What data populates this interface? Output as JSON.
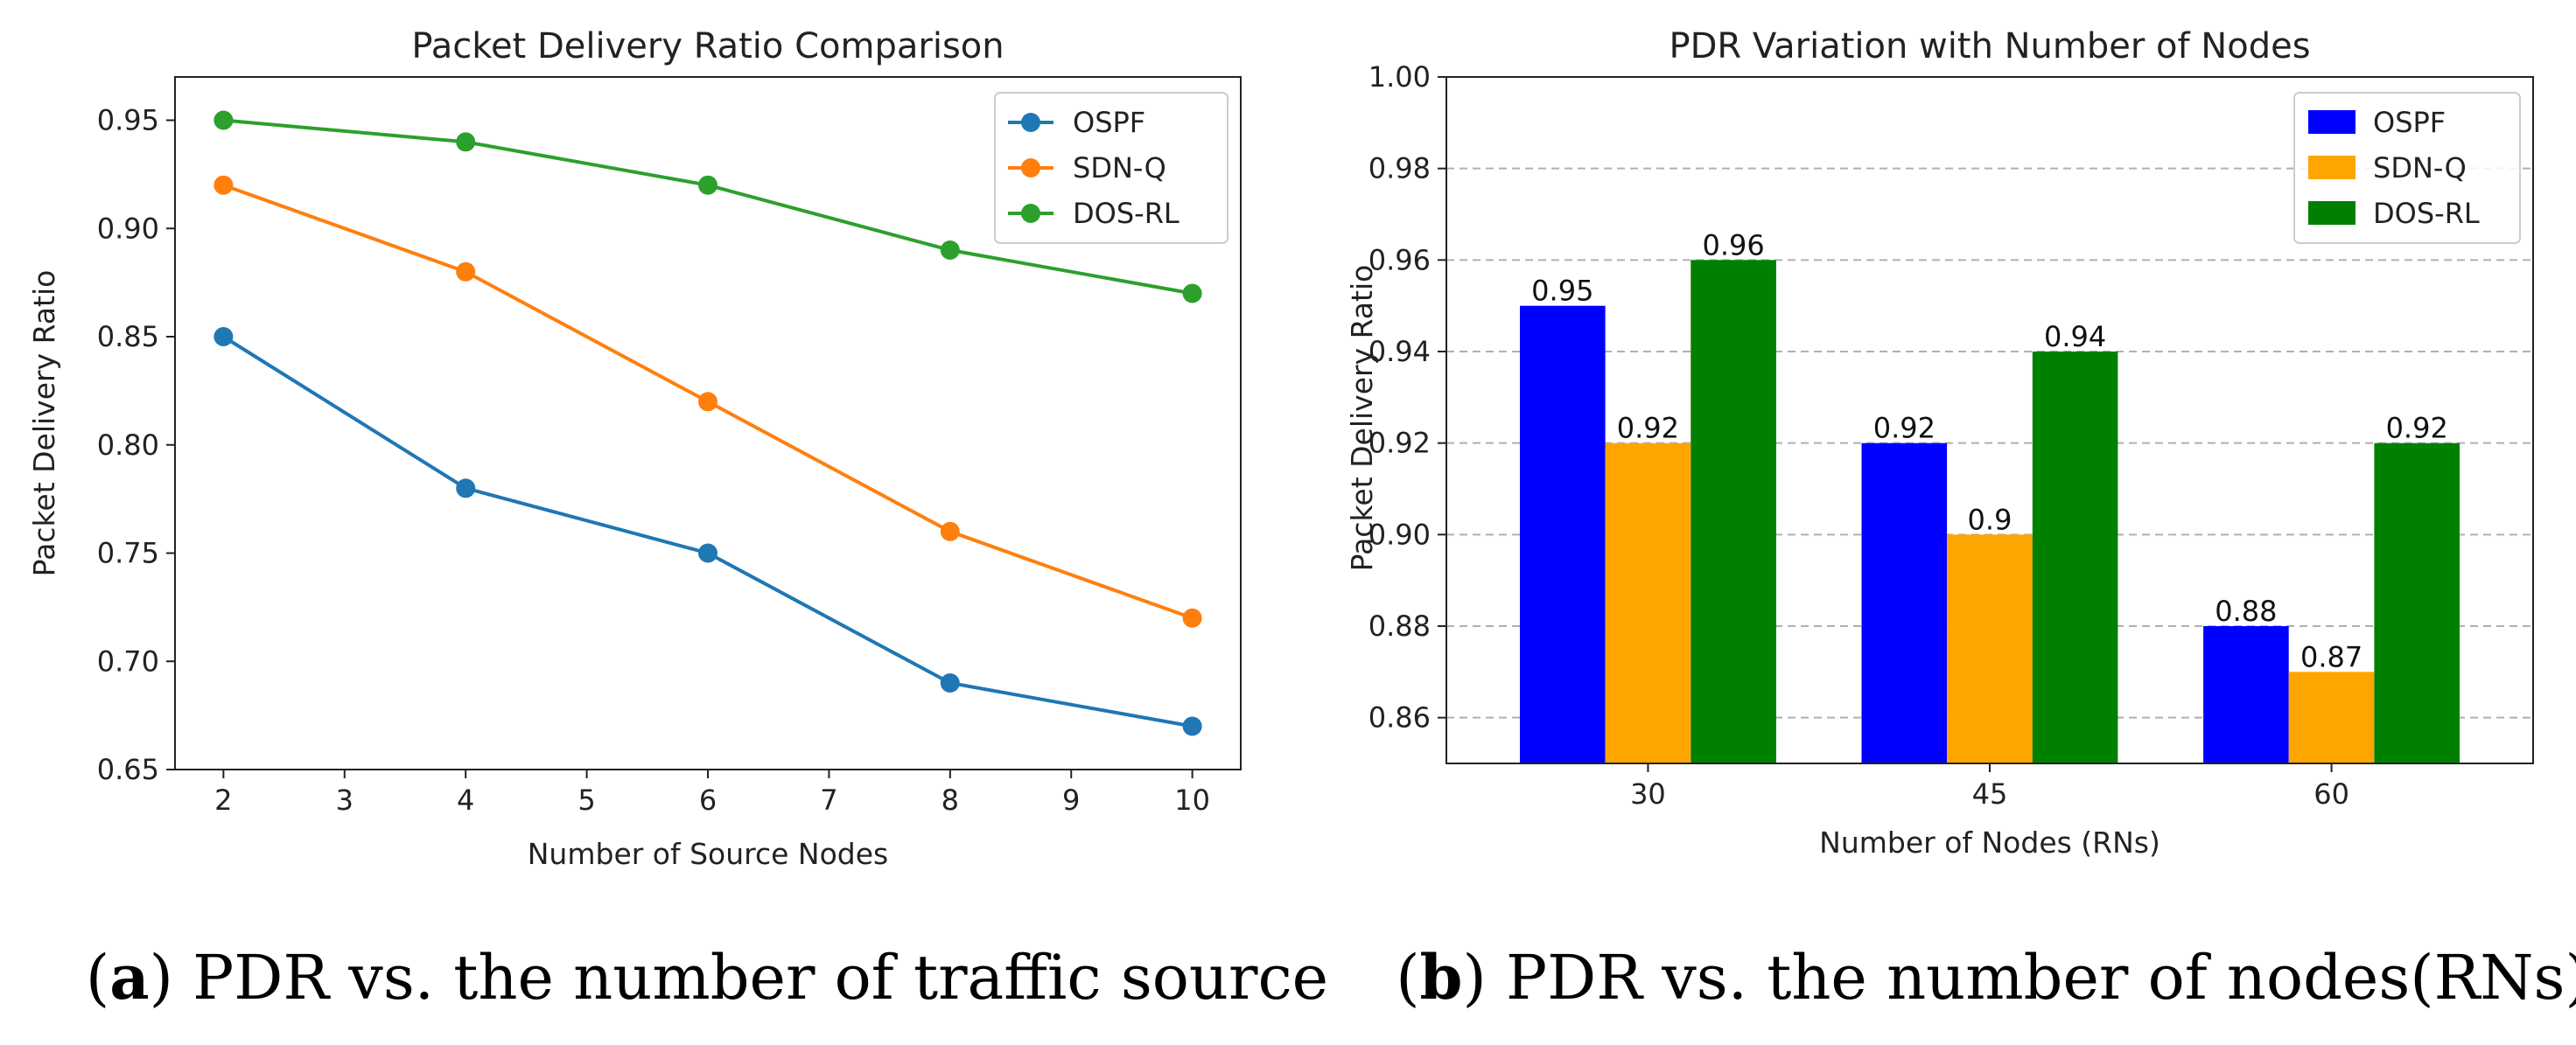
{
  "chart_data": [
    {
      "type": "line",
      "title": "Packet Delivery Ratio Comparison",
      "xlabel": "Number of Source Nodes",
      "ylabel": "Packet Delivery Ratio",
      "x": [
        2,
        4,
        6,
        8,
        10
      ],
      "xticks": [
        "2",
        "3",
        "4",
        "5",
        "6",
        "7",
        "8",
        "9",
        "10"
      ],
      "xlim": [
        1.6,
        10.4
      ],
      "yticks": [
        "0.65",
        "0.70",
        "0.75",
        "0.80",
        "0.85",
        "0.90",
        "0.95"
      ],
      "ylim": [
        0.65,
        0.97
      ],
      "grid": false,
      "legend": "top-right",
      "series": [
        {
          "name": "OSPF",
          "color": "#1f77b4",
          "values": [
            0.85,
            0.78,
            0.75,
            0.69,
            0.67
          ]
        },
        {
          "name": "SDN-Q",
          "color": "#ff7f0e",
          "values": [
            0.92,
            0.88,
            0.82,
            0.76,
            0.72
          ]
        },
        {
          "name": "DOS-RL",
          "color": "#2ca02c",
          "values": [
            0.95,
            0.94,
            0.92,
            0.89,
            0.87
          ]
        }
      ]
    },
    {
      "type": "bar",
      "title": "PDR Variation with Number of Nodes",
      "xlabel": "Number of Nodes (RNs)",
      "ylabel": "Packet Delivery Ratio",
      "categories": [
        "30",
        "45",
        "60"
      ],
      "yticks": [
        "0.86",
        "0.88",
        "0.90",
        "0.92",
        "0.94",
        "0.96",
        "0.98",
        "1.00"
      ],
      "ylim": [
        0.85,
        1.0
      ],
      "grid": true,
      "legend": "top-right",
      "series": [
        {
          "name": "OSPF",
          "color": "#0000ff",
          "values": [
            0.95,
            0.92,
            0.88
          ],
          "labels": [
            "0.95",
            "0.92",
            "0.88"
          ]
        },
        {
          "name": "SDN-Q",
          "color": "#ffa500",
          "values": [
            0.92,
            0.9,
            0.87
          ],
          "labels": [
            "0.92",
            "0.9",
            "0.87"
          ]
        },
        {
          "name": "DOS-RL",
          "color": "#008000",
          "values": [
            0.96,
            0.94,
            0.92
          ],
          "labels": [
            "0.96",
            "0.94",
            "0.92"
          ]
        }
      ]
    }
  ],
  "captions": [
    {
      "letter": "a",
      "text": " PDR vs. the number of traffic source"
    },
    {
      "letter": "b",
      "text": " PDR vs. the number of nodes(RNs)"
    }
  ]
}
